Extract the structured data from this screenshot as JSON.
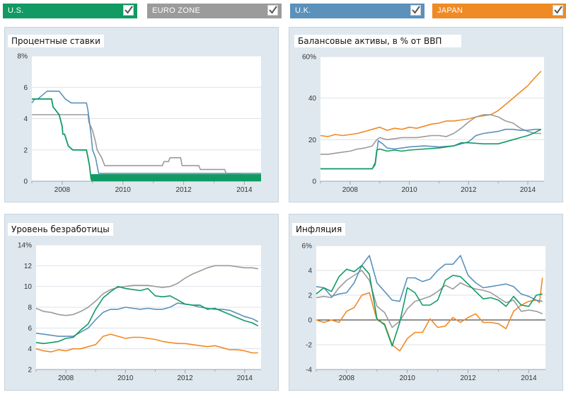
{
  "legend": [
    {
      "key": "us",
      "label": "U.S.",
      "color": "#119a63",
      "checked": true
    },
    {
      "key": "ez",
      "label": "EURO ZONE",
      "color": "#9b9b9b",
      "checked": true
    },
    {
      "key": "uk",
      "label": "U.K.",
      "color": "#5b91bb",
      "checked": true
    },
    {
      "key": "jp",
      "label": "JAPAN",
      "color": "#f08a24",
      "checked": true
    }
  ],
  "chart_data": [
    {
      "id": "rates",
      "type": "line",
      "title": "Процентные ставки",
      "xlim": [
        2007,
        2014.55
      ],
      "ylim": [
        0,
        8
      ],
      "xticks": [
        2008,
        2010,
        2012,
        2014
      ],
      "yticks": [
        0,
        2,
        4,
        6,
        8
      ],
      "ytick_labels": [
        "0",
        "2",
        "4",
        "6",
        "8%"
      ],
      "grid": true,
      "series": [
        {
          "key": "ez",
          "x": [
            2007,
            2007.1,
            2008.85,
            2008.88,
            2009.0,
            2009.1,
            2009.15,
            2009.3,
            2009.4,
            2011.3,
            2011.35,
            2011.5,
            2011.55,
            2011.9,
            2011.95,
            2012.5,
            2012.55,
            2013.35,
            2013.4,
            2013.85,
            2013.9,
            2014.55
          ],
          "y": [
            4.25,
            4.25,
            4.25,
            3.75,
            3.25,
            2.5,
            2.0,
            1.5,
            1.0,
            1.0,
            1.25,
            1.25,
            1.5,
            1.5,
            1.0,
            1.0,
            0.75,
            0.75,
            0.5,
            0.5,
            0.25,
            0.25
          ]
        },
        {
          "key": "uk",
          "x": [
            2007,
            2007.1,
            2007.2,
            2007.35,
            2007.5,
            2007.9,
            2008.0,
            2008.1,
            2008.3,
            2008.8,
            2008.85,
            2008.95,
            2009.0,
            2009.1,
            2009.2,
            2014.55
          ],
          "y": [
            5.0,
            5.25,
            5.25,
            5.5,
            5.75,
            5.75,
            5.5,
            5.25,
            5.0,
            5.0,
            4.5,
            3.0,
            2.0,
            1.5,
            0.5,
            0.5
          ]
        },
        {
          "key": "us",
          "x": [
            2007,
            2007.65,
            2007.7,
            2007.8,
            2007.9,
            2008.0,
            2008.02,
            2008.08,
            2008.2,
            2008.35,
            2008.8,
            2008.85,
            2008.9,
            2008.95,
            2014.55
          ],
          "y": [
            5.25,
            5.25,
            4.75,
            4.5,
            4.25,
            3.5,
            3.0,
            3.0,
            2.25,
            2.0,
            2.0,
            1.5,
            1.0,
            0.125,
            0.125
          ]
        }
      ]
    },
    {
      "id": "balance",
      "type": "line",
      "title": "Балансовые активы, в % от ВВП",
      "xlim": [
        2007,
        2014.55
      ],
      "ylim": [
        0,
        60
      ],
      "xticks": [
        2008,
        2010,
        2012,
        2014
      ],
      "yticks": [
        0,
        20,
        40,
        60
      ],
      "ytick_labels": [
        "0",
        "20",
        "40",
        "60%"
      ],
      "grid": true,
      "series": [
        {
          "key": "jp",
          "x": [
            2007,
            2007.25,
            2007.5,
            2007.75,
            2008.0,
            2008.25,
            2008.5,
            2008.75,
            2009.0,
            2009.25,
            2009.5,
            2009.75,
            2010.0,
            2010.25,
            2010.5,
            2010.75,
            2011.0,
            2011.25,
            2011.5,
            2011.75,
            2012.0,
            2012.25,
            2012.5,
            2012.75,
            2013.0,
            2013.25,
            2013.5,
            2013.75,
            2014.0,
            2014.25,
            2014.45
          ],
          "y": [
            22,
            21.5,
            22.5,
            22,
            22.5,
            23,
            24,
            25,
            26,
            24.5,
            25.5,
            25,
            26,
            25.5,
            26.5,
            27.5,
            28,
            29,
            29,
            29.5,
            30,
            31,
            31.5,
            32,
            34,
            37,
            40,
            43,
            46,
            50,
            53
          ]
        },
        {
          "key": "ez",
          "x": [
            2007,
            2007.25,
            2007.5,
            2007.75,
            2008.0,
            2008.25,
            2008.5,
            2008.75,
            2008.9,
            2009.0,
            2009.25,
            2009.5,
            2009.75,
            2010.0,
            2010.25,
            2010.5,
            2010.75,
            2011.0,
            2011.25,
            2011.5,
            2011.75,
            2012.0,
            2012.25,
            2012.5,
            2012.75,
            2013.0,
            2013.25,
            2013.5,
            2013.75,
            2014.0,
            2014.25,
            2014.45
          ],
          "y": [
            13,
            13,
            13.5,
            14,
            14.5,
            15.5,
            16,
            17,
            20,
            21,
            20,
            20.5,
            21,
            21,
            21,
            21.5,
            22,
            22,
            21.5,
            23,
            25.5,
            28.5,
            31,
            32,
            32,
            31,
            29,
            28,
            25.5,
            24,
            23,
            23
          ]
        },
        {
          "key": "uk",
          "x": [
            2007,
            2007.5,
            2008.0,
            2008.5,
            2008.75,
            2008.85,
            2008.95,
            2009.1,
            2009.25,
            2009.5,
            2009.75,
            2010.0,
            2010.5,
            2011.0,
            2011.5,
            2012.0,
            2012.25,
            2012.5,
            2012.75,
            2013.0,
            2013.25,
            2013.5,
            2013.75,
            2014.0,
            2014.25,
            2014.45
          ],
          "y": [
            6,
            6,
            6,
            6,
            6,
            8,
            19.5,
            18,
            16,
            15.5,
            16,
            16.5,
            17,
            16.5,
            17,
            19,
            22,
            23,
            23.5,
            24,
            25,
            25,
            24.5,
            24.5,
            25,
            25
          ]
        },
        {
          "key": "us",
          "x": [
            2007,
            2007.5,
            2008.0,
            2008.5,
            2008.75,
            2008.85,
            2008.9,
            2009.0,
            2009.25,
            2009.5,
            2009.75,
            2010.0,
            2010.5,
            2011.0,
            2011.5,
            2011.75,
            2012.0,
            2012.5,
            2013.0,
            2013.25,
            2013.5,
            2013.75,
            2014.0,
            2014.25,
            2014.45
          ],
          "y": [
            6,
            6,
            6,
            6,
            6,
            9,
            15,
            15.5,
            14.5,
            15,
            14.5,
            15,
            15.5,
            16,
            17,
            18.5,
            18.5,
            18,
            18,
            19,
            20,
            21,
            22,
            23.5,
            25
          ]
        }
      ]
    },
    {
      "id": "unemployment",
      "type": "line",
      "title": "Уровень безработицы",
      "xlim": [
        2007,
        2014.55
      ],
      "ylim": [
        2,
        14
      ],
      "xticks": [
        2008,
        2010,
        2012,
        2014
      ],
      "yticks": [
        2,
        4,
        6,
        8,
        10,
        12,
        14
      ],
      "ytick_labels": [
        "2",
        "4",
        "6",
        "8",
        "10",
        "12",
        "14%"
      ],
      "grid": true,
      "series": [
        {
          "key": "ez",
          "x": [
            2007,
            2007.25,
            2007.5,
            2007.75,
            2008.0,
            2008.25,
            2008.5,
            2008.75,
            2009.0,
            2009.25,
            2009.5,
            2009.75,
            2010.0,
            2010.25,
            2010.5,
            2010.75,
            2011.0,
            2011.25,
            2011.5,
            2011.75,
            2012.0,
            2012.25,
            2012.5,
            2012.75,
            2013.0,
            2013.25,
            2013.5,
            2013.75,
            2014.0,
            2014.25,
            2014.45
          ],
          "y": [
            7.9,
            7.6,
            7.5,
            7.3,
            7.2,
            7.3,
            7.6,
            8.0,
            8.6,
            9.3,
            9.7,
            9.9,
            10.0,
            10.1,
            10.1,
            10.1,
            10.0,
            9.9,
            10.0,
            10.3,
            10.8,
            11.2,
            11.5,
            11.8,
            12.0,
            12.0,
            12.0,
            11.9,
            11.8,
            11.8,
            11.7
          ]
        },
        {
          "key": "uk",
          "x": [
            2007,
            2007.25,
            2007.5,
            2007.75,
            2008.0,
            2008.25,
            2008.5,
            2008.75,
            2009.0,
            2009.25,
            2009.5,
            2009.75,
            2010.0,
            2010.25,
            2010.5,
            2010.75,
            2011.0,
            2011.25,
            2011.5,
            2011.75,
            2012.0,
            2012.25,
            2012.5,
            2012.75,
            2013.0,
            2013.25,
            2013.5,
            2013.75,
            2014.0,
            2014.25,
            2014.45
          ],
          "y": [
            5.5,
            5.4,
            5.3,
            5.2,
            5.2,
            5.2,
            5.6,
            6.0,
            6.8,
            7.5,
            7.8,
            7.8,
            8.0,
            7.9,
            7.8,
            7.9,
            7.8,
            7.8,
            8.0,
            8.4,
            8.3,
            8.2,
            8.0,
            7.9,
            7.8,
            7.8,
            7.7,
            7.4,
            7.1,
            6.9,
            6.6
          ]
        },
        {
          "key": "us",
          "x": [
            2007,
            2007.25,
            2007.5,
            2007.75,
            2008.0,
            2008.25,
            2008.5,
            2008.75,
            2009.0,
            2009.25,
            2009.5,
            2009.75,
            2010.0,
            2010.25,
            2010.5,
            2010.75,
            2011.0,
            2011.25,
            2011.5,
            2011.75,
            2012.0,
            2012.25,
            2012.5,
            2012.75,
            2013.0,
            2013.25,
            2013.5,
            2013.75,
            2014.0,
            2014.25,
            2014.45
          ],
          "y": [
            4.6,
            4.5,
            4.6,
            4.7,
            5.0,
            5.1,
            5.8,
            6.4,
            7.8,
            8.9,
            9.5,
            10.0,
            9.8,
            9.7,
            9.6,
            9.8,
            9.1,
            9.0,
            9.1,
            8.7,
            8.3,
            8.2,
            8.2,
            7.8,
            7.9,
            7.6,
            7.3,
            7.0,
            6.7,
            6.5,
            6.2
          ]
        },
        {
          "key": "jp",
          "x": [
            2007,
            2007.25,
            2007.5,
            2007.75,
            2008.0,
            2008.25,
            2008.5,
            2008.75,
            2009.0,
            2009.25,
            2009.5,
            2009.75,
            2010.0,
            2010.25,
            2010.5,
            2010.75,
            2011.0,
            2011.25,
            2011.5,
            2011.75,
            2012.0,
            2012.25,
            2012.5,
            2012.75,
            2013.0,
            2013.25,
            2013.5,
            2013.75,
            2014.0,
            2014.25,
            2014.45
          ],
          "y": [
            4.0,
            3.8,
            3.7,
            3.9,
            3.8,
            4.0,
            4.0,
            4.2,
            4.4,
            5.2,
            5.4,
            5.2,
            5.0,
            5.1,
            5.1,
            5.0,
            4.9,
            4.7,
            4.6,
            4.5,
            4.5,
            4.4,
            4.3,
            4.2,
            4.3,
            4.1,
            3.9,
            3.9,
            3.8,
            3.6,
            3.6
          ]
        }
      ]
    },
    {
      "id": "inflation",
      "type": "line",
      "title": "Инфляция",
      "xlim": [
        2007,
        2014.55
      ],
      "ylim": [
        -4,
        6
      ],
      "xticks": [
        2008,
        2010,
        2012,
        2014
      ],
      "yticks": [
        -4,
        -2,
        0,
        2,
        4,
        6
      ],
      "ytick_labels": [
        "-4",
        "-2",
        "0",
        "2",
        "4",
        "6%"
      ],
      "grid": true,
      "zero_line": true,
      "series": [
        {
          "key": "jp",
          "x": [
            2007,
            2007.25,
            2007.5,
            2007.75,
            2008.0,
            2008.25,
            2008.5,
            2008.75,
            2009.0,
            2009.25,
            2009.5,
            2009.75,
            2010.0,
            2010.25,
            2010.5,
            2010.75,
            2011.0,
            2011.25,
            2011.5,
            2011.75,
            2012.0,
            2012.25,
            2012.5,
            2012.75,
            2013.0,
            2013.25,
            2013.5,
            2013.75,
            2014.0,
            2014.25,
            2014.35,
            2014.45
          ],
          "y": [
            0,
            -0.2,
            0,
            -0.2,
            0.7,
            1.0,
            2.0,
            2.2,
            0,
            -0.3,
            -2.0,
            -2.5,
            -1.5,
            -1.0,
            -1.0,
            0.1,
            -0.6,
            -0.5,
            0.2,
            -0.2,
            0.2,
            0.5,
            -0.2,
            -0.2,
            -0.3,
            -0.7,
            0.7,
            1.2,
            1.5,
            1.6,
            1.4,
            3.4
          ]
        },
        {
          "key": "ez",
          "x": [
            2007,
            2007.25,
            2007.5,
            2007.75,
            2008.0,
            2008.25,
            2008.5,
            2008.75,
            2009.0,
            2009.25,
            2009.5,
            2009.75,
            2010.0,
            2010.25,
            2010.5,
            2010.75,
            2011.0,
            2011.25,
            2011.5,
            2011.75,
            2012.0,
            2012.25,
            2012.5,
            2012.75,
            2013.0,
            2013.25,
            2013.5,
            2013.75,
            2014.0,
            2014.25,
            2014.45
          ],
          "y": [
            1.8,
            1.9,
            1.8,
            2.6,
            3.2,
            3.6,
            4.0,
            3.2,
            1.1,
            0.6,
            -0.6,
            -0.1,
            0.9,
            1.5,
            1.7,
            1.9,
            2.3,
            2.8,
            2.5,
            3.0,
            2.7,
            2.5,
            2.4,
            2.2,
            1.8,
            1.4,
            1.6,
            0.7,
            0.8,
            0.7,
            0.5
          ]
        },
        {
          "key": "uk",
          "x": [
            2007,
            2007.25,
            2007.5,
            2007.75,
            2008.0,
            2008.25,
            2008.5,
            2008.75,
            2009.0,
            2009.25,
            2009.5,
            2009.75,
            2010.0,
            2010.25,
            2010.5,
            2010.75,
            2011.0,
            2011.25,
            2011.5,
            2011.75,
            2012.0,
            2012.25,
            2012.5,
            2012.75,
            2013.0,
            2013.25,
            2013.5,
            2013.75,
            2014.0,
            2014.25,
            2014.45
          ],
          "y": [
            2.7,
            2.6,
            1.9,
            2.1,
            2.2,
            3.0,
            4.4,
            5.2,
            3.0,
            2.3,
            1.6,
            1.5,
            3.4,
            3.4,
            3.1,
            3.3,
            4.0,
            4.5,
            4.5,
            5.2,
            3.6,
            3.0,
            2.6,
            2.7,
            2.8,
            2.9,
            2.7,
            2.1,
            1.9,
            1.6,
            1.5
          ]
        },
        {
          "key": "us",
          "x": [
            2007,
            2007.25,
            2007.5,
            2007.75,
            2008.0,
            2008.25,
            2008.5,
            2008.75,
            2009.0,
            2009.25,
            2009.5,
            2009.75,
            2010.0,
            2010.25,
            2010.5,
            2010.75,
            2011.0,
            2011.25,
            2011.5,
            2011.75,
            2012.0,
            2012.25,
            2012.5,
            2012.75,
            2013.0,
            2013.25,
            2013.5,
            2013.75,
            2014.0,
            2014.25,
            2014.45
          ],
          "y": [
            2.1,
            2.6,
            2.3,
            3.5,
            4.1,
            3.9,
            4.4,
            3.7,
            0.1,
            -0.4,
            -2.1,
            -0.2,
            2.6,
            2.2,
            1.2,
            1.2,
            1.6,
            3.2,
            3.6,
            3.5,
            2.9,
            2.3,
            1.7,
            1.8,
            1.6,
            1.1,
            1.9,
            1.2,
            1.1,
            2.0,
            2.1
          ]
        }
      ]
    }
  ]
}
